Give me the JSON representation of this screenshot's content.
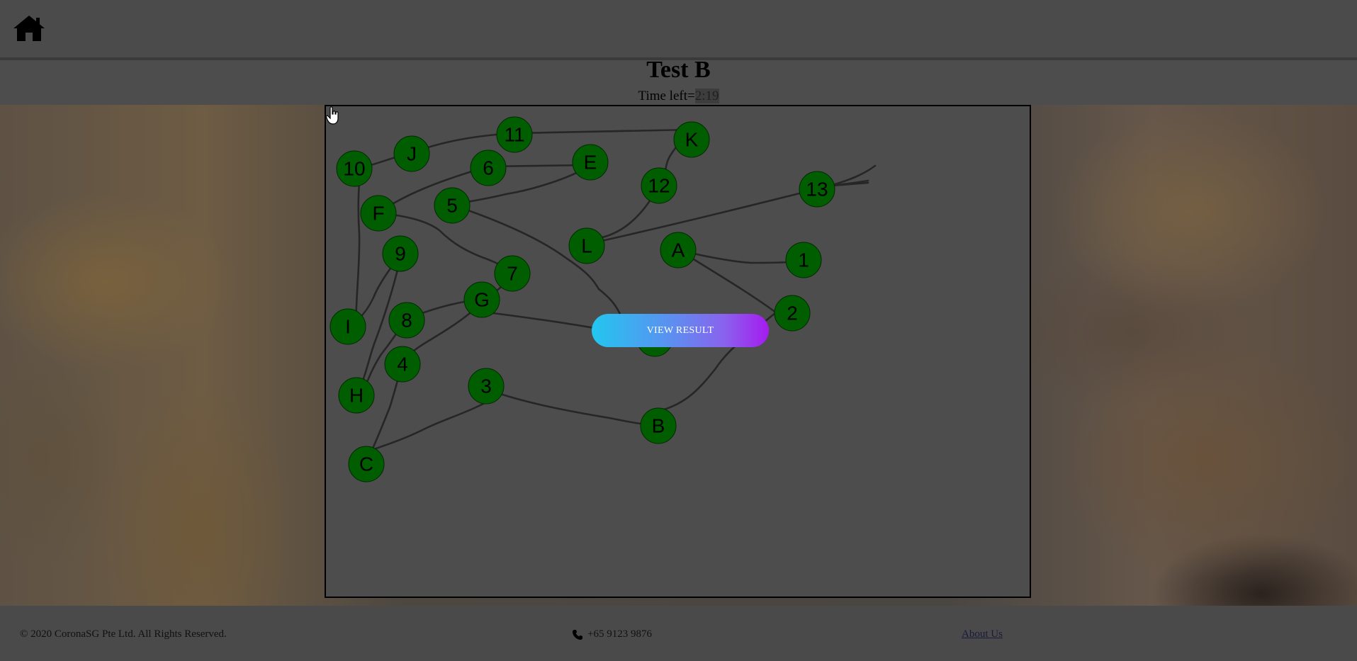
{
  "header": {
    "home_icon": "home-icon"
  },
  "test": {
    "title": "Test B",
    "time_label": "Time left=",
    "time_value": "2:19"
  },
  "board": {
    "nodes": [
      "11",
      "K",
      "J",
      "10",
      "6",
      "E",
      "12",
      "13",
      "5",
      "F",
      "L",
      "A",
      "1",
      "9",
      "7",
      "G",
      "2",
      "I",
      "8",
      "D",
      "4",
      "H",
      "3",
      "B",
      "C"
    ],
    "node_color": "#005e00",
    "edge_color": "#262626"
  },
  "overlay": {
    "view_result_label": "VIEW RESULT",
    "gradient_start": "#23c6ef",
    "gradient_end": "#a51bef"
  },
  "footer": {
    "copyright": "© 2020 CoronaSG Pte Ltd. All Rights Reserved.",
    "phone_icon": "phone-icon",
    "phone": "+65 9123 9876",
    "about_link": "About Us"
  }
}
